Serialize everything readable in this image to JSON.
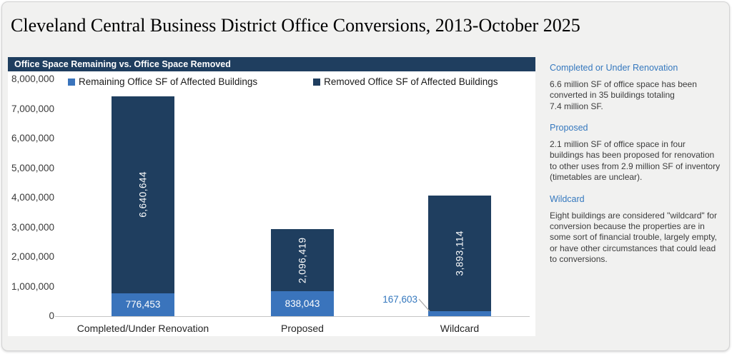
{
  "page": {
    "title": "Cleveland Central Business District Office Conversions, 2013-October 2025"
  },
  "colors": {
    "header_bar": "#1F3E5F",
    "remaining_blue": "#3A74BC",
    "removed_navy": "#1F3E5F",
    "note_heading_blue": "#3578BE",
    "callout_text_blue": "#3578BE",
    "axis_line_gray": "#C6C6C6"
  },
  "chart_data": {
    "type": "bar",
    "stacked": true,
    "title": "Office Space Remaining vs. Office Space Removed",
    "categories": [
      "Completed/Under Renovation",
      "Proposed",
      "Wildcard"
    ],
    "series": [
      {
        "name": "Remaining Office SF of Affected Buildings",
        "color": "#3A74BC",
        "values": [
          776453,
          838043,
          167603
        ],
        "labels": [
          "776,453",
          "838,043",
          "167,603"
        ]
      },
      {
        "name": "Removed Office SF of Affected Buildings",
        "color": "#1F3E5F",
        "values": [
          6640644,
          2096419,
          3893114
        ],
        "labels": [
          "6,640,644",
          "2,096,419",
          "3,893,114"
        ]
      }
    ],
    "xlabel": "",
    "ylabel": "",
    "ylim": [
      0,
      8000000
    ],
    "ytick_interval": 1000000,
    "yticks": [
      "0",
      "1,000,000",
      "2,000,000",
      "3,000,000",
      "4,000,000",
      "5,000,000",
      "6,000,000",
      "7,000,000",
      "8,000,000"
    ],
    "grid": false,
    "legend_position": "top"
  },
  "sidebar": {
    "sections": [
      {
        "heading": "Completed or Under Renovation",
        "body": "6.6 million SF of office space has been\nconverted in 35 buildings totaling\n7.4 million SF."
      },
      {
        "heading": "Proposed",
        "body": "2.1 million SF of office space in four\nbuildings has been proposed for renovation\nto other uses from 2.9 million SF of inventory\n(timetables are unclear)."
      },
      {
        "heading": "Wildcard",
        "body": "Eight buildings are considered \"wildcard\" for\nconversion because the properties are in\nsome sort of financial trouble, largely empty,\nor have other circumstances that could lead\nto conversions."
      }
    ]
  }
}
